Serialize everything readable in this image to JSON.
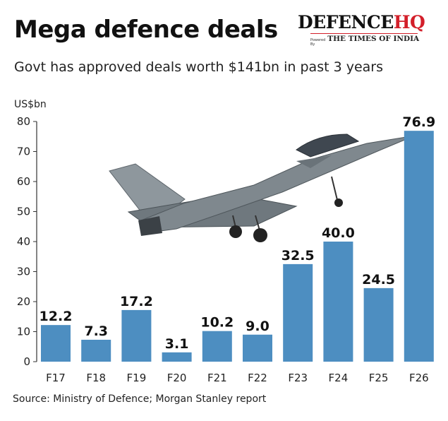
{
  "header": {
    "title": "Mega defence deals",
    "subtitle": "Govt has approved deals worth $141bn in past 3 years"
  },
  "brand": {
    "main_text": "DEFENCE",
    "main_accent": "HQ",
    "powered_by": "Powered By",
    "partner": "THE TIMES OF INDIA"
  },
  "footer": {
    "source": "Source: Ministry of Defence; Morgan Stanley report"
  },
  "colors": {
    "bar": "#4d8ec1",
    "axis": "#333333",
    "brand_accent": "#d31f2a"
  },
  "chart_data": {
    "type": "bar",
    "categories": [
      "F17",
      "F18",
      "F19",
      "F20",
      "F21",
      "F22",
      "F23",
      "F24",
      "F25",
      "F26"
    ],
    "values": [
      12.2,
      7.3,
      17.2,
      3.1,
      10.2,
      9.0,
      32.5,
      40.0,
      24.5,
      76.9
    ],
    "value_labels": [
      "12.2",
      "7.3",
      "17.2",
      "3.1",
      "10.2",
      "9.0",
      "32.5",
      "40.0",
      "24.5",
      "76.9"
    ],
    "ylabel": "US$bn",
    "ylim": [
      0,
      80
    ],
    "yticks": [
      0,
      10,
      20,
      30,
      40,
      50,
      60,
      70,
      80
    ],
    "grid": false,
    "legend": "none"
  }
}
